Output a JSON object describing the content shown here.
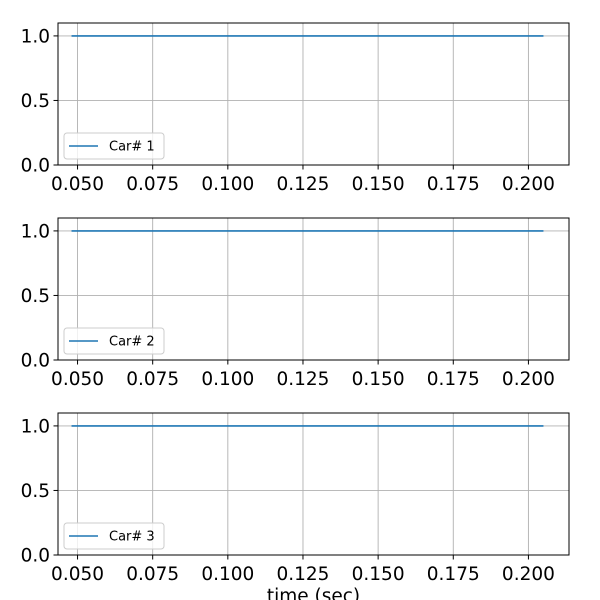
{
  "chart_data": [
    {
      "type": "line",
      "xlabel": "",
      "ylabel": "",
      "xlim": [
        0.0435,
        0.2135
      ],
      "ylim": [
        0.0,
        1.1
      ],
      "xticks": [
        "0.050",
        "0.075",
        "0.100",
        "0.125",
        "0.150",
        "0.175",
        "0.200"
      ],
      "yticks": [
        "0.0",
        "0.5",
        "1.0"
      ],
      "grid": true,
      "legend_position": "lower-left",
      "series": [
        {
          "name": "Car# 1",
          "color": "#1f77b4",
          "x": [
            0.048,
            0.205
          ],
          "y": [
            1.0,
            1.0
          ]
        }
      ]
    },
    {
      "type": "line",
      "xlabel": "",
      "ylabel": "",
      "xlim": [
        0.0435,
        0.2135
      ],
      "ylim": [
        0.0,
        1.1
      ],
      "xticks": [
        "0.050",
        "0.075",
        "0.100",
        "0.125",
        "0.150",
        "0.175",
        "0.200"
      ],
      "yticks": [
        "0.0",
        "0.5",
        "1.0"
      ],
      "grid": true,
      "legend_position": "lower-left",
      "series": [
        {
          "name": "Car# 2",
          "color": "#1f77b4",
          "x": [
            0.048,
            0.205
          ],
          "y": [
            1.0,
            1.0
          ]
        }
      ]
    },
    {
      "type": "line",
      "xlabel": "time (sec)",
      "ylabel": "",
      "xlim": [
        0.0435,
        0.2135
      ],
      "ylim": [
        0.0,
        1.1
      ],
      "xticks": [
        "0.050",
        "0.075",
        "0.100",
        "0.125",
        "0.150",
        "0.175",
        "0.200"
      ],
      "yticks": [
        "0.0",
        "0.5",
        "1.0"
      ],
      "grid": true,
      "legend_position": "lower-left",
      "series": [
        {
          "name": "Car# 3",
          "color": "#1f77b4",
          "x": [
            0.048,
            0.205
          ],
          "y": [
            1.0,
            1.0
          ]
        }
      ]
    }
  ]
}
